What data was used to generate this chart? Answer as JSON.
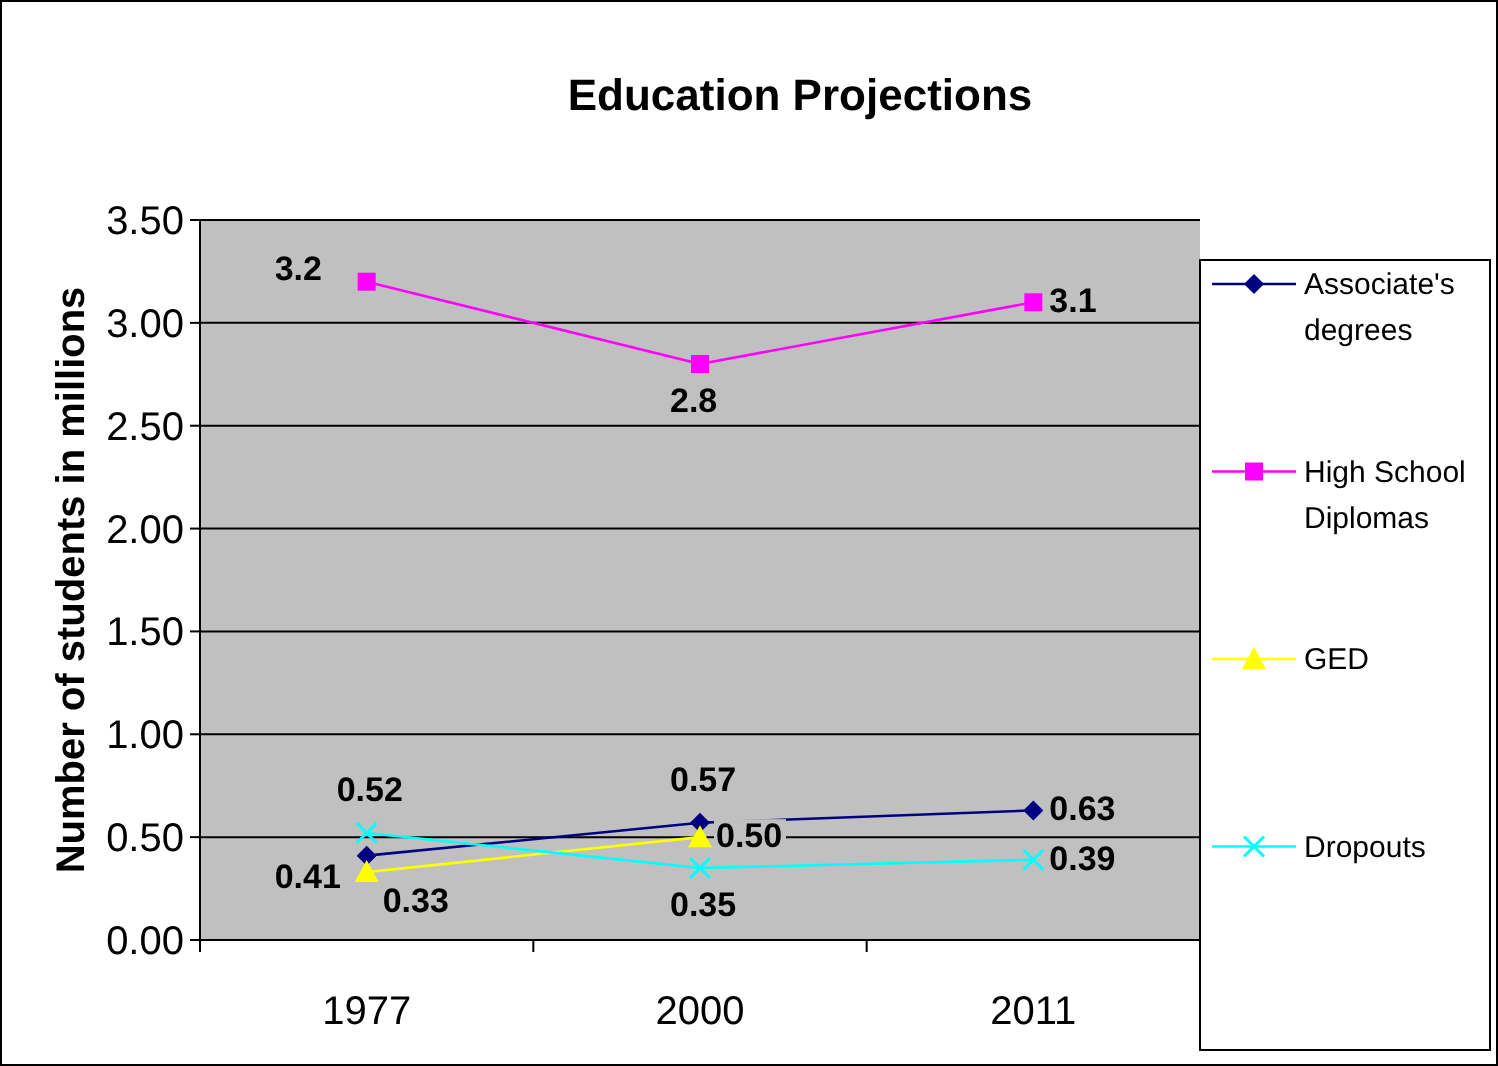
{
  "chart_data": {
    "type": "line",
    "title": "Education Projections",
    "ylabel": "Number of students in millions",
    "categories": [
      "1977",
      "2000",
      "2011"
    ],
    "series": [
      {
        "name": "Associate's degrees",
        "color": "#000080",
        "marker": "diamond",
        "values": [
          0.41,
          0.57,
          0.63
        ],
        "value_labels": [
          "0.41",
          "0.57",
          "0.63"
        ]
      },
      {
        "name": "High School Diplomas",
        "color": "#ff00ff",
        "marker": "square",
        "values": [
          3.2,
          2.8,
          3.1
        ],
        "value_labels": [
          "3.2",
          "2.8",
          "3.1"
        ]
      },
      {
        "name": "GED",
        "color": "#ffff00",
        "marker": "triangle",
        "values": [
          0.33,
          0.5,
          null
        ],
        "value_labels": [
          "0.33",
          "0.50",
          null
        ]
      },
      {
        "name": "Dropouts",
        "color": "#00ffff",
        "marker": "cross",
        "values": [
          0.52,
          0.35,
          0.39
        ],
        "value_labels": [
          "0.52",
          "0.35",
          "0.39"
        ]
      }
    ],
    "ylim": [
      0,
      3.5
    ],
    "yticks": [
      {
        "value": 0,
        "label": "0.00"
      },
      {
        "value": 0.5,
        "label": "0.50"
      },
      {
        "value": 1,
        "label": "1.00"
      },
      {
        "value": 1.5,
        "label": "1.50"
      },
      {
        "value": 2,
        "label": "2.00"
      },
      {
        "value": 2.5,
        "label": "2.50"
      },
      {
        "value": 3,
        "label": "3.00"
      },
      {
        "value": 3.5,
        "label": "3.50"
      }
    ],
    "grid": "y",
    "legend": "right"
  }
}
